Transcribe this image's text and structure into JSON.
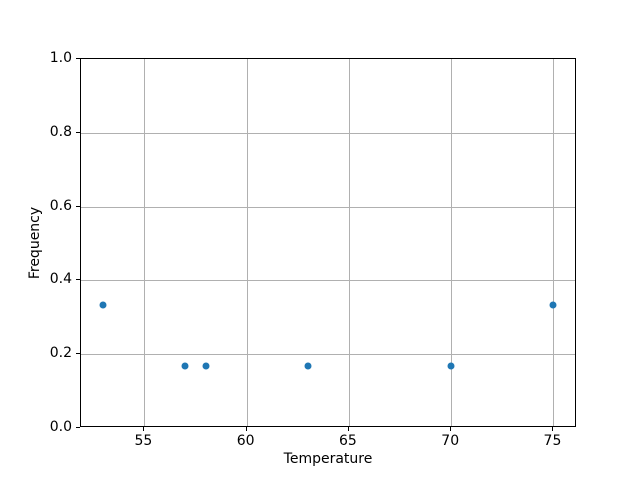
{
  "chart_data": {
    "type": "scatter",
    "title": "",
    "xlabel": "Temperature",
    "ylabel": "Frequency",
    "x": [
      53,
      57,
      58,
      63,
      70,
      75
    ],
    "y": [
      0.333,
      0.167,
      0.167,
      0.167,
      0.167,
      0.333
    ],
    "xlim": [
      51.9,
      76.15
    ],
    "ylim": [
      0.0,
      1.0
    ],
    "xticks": [
      55,
      60,
      65,
      70,
      75
    ],
    "xtick_labels": [
      "55",
      "60",
      "65",
      "70",
      "75"
    ],
    "yticks": [
      0.0,
      0.2,
      0.4,
      0.6,
      0.8,
      1.0
    ],
    "ytick_labels": [
      "0.0",
      "0.2",
      "0.4",
      "0.6",
      "0.8",
      "1.0"
    ],
    "grid": true,
    "legend": false,
    "marker_color": "#1f77b4",
    "grid_color": "#b0b0b0",
    "spine_color": "#000000",
    "background_color": "#ffffff"
  }
}
